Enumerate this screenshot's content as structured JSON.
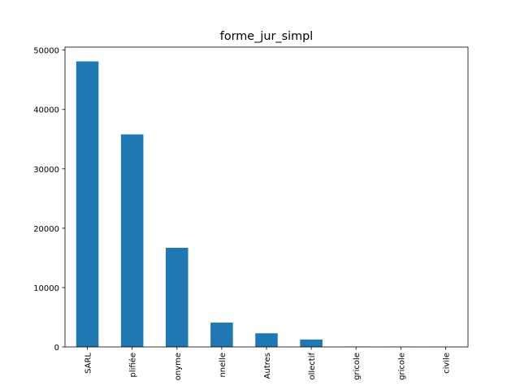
{
  "chart_data": {
    "type": "bar",
    "title": "forme_jur_simpl",
    "xlabel": "",
    "ylabel": "",
    "categories": [
      "SARL",
      "plifiée",
      "onyme",
      "nnelle",
      "Autres",
      "ollectif",
      "gricole",
      "gricole",
      "civile"
    ],
    "values": [
      48100,
      35800,
      16700,
      4100,
      2300,
      1250,
      40,
      20,
      10
    ],
    "ylim": [
      0,
      50500
    ],
    "yticks": [
      0,
      10000,
      20000,
      30000,
      40000,
      50000
    ],
    "ytick_labels": [
      "0",
      "10000",
      "20000",
      "30000",
      "40000",
      "50000"
    ],
    "grid": false,
    "bar_color": "#1f77b4"
  }
}
